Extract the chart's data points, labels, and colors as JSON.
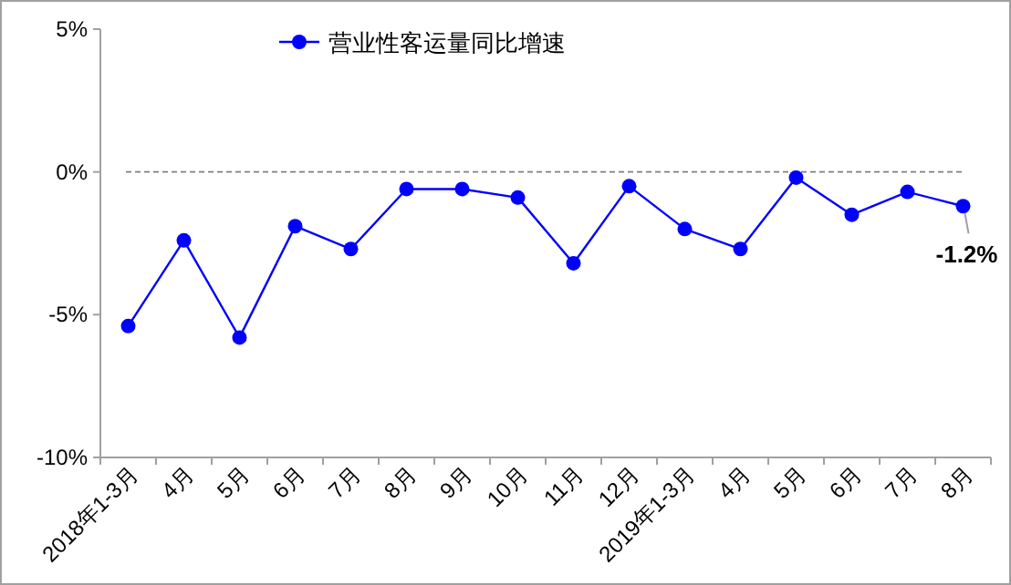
{
  "chart_data": {
    "type": "line",
    "categories": [
      "2018年1-3月",
      "4月",
      "5月",
      "6月",
      "7月",
      "8月",
      "9月",
      "10月",
      "11月",
      "12月",
      "2019年1-3月",
      "4月",
      "5月",
      "6月",
      "7月",
      "8月"
    ],
    "series": [
      {
        "name": "营业性客运量同比增速",
        "color": "#0000ff",
        "values": [
          -5.4,
          -2.4,
          -5.8,
          -1.9,
          -2.7,
          -0.6,
          -0.6,
          -0.9,
          -3.2,
          -0.5,
          -2.0,
          -2.7,
          -0.2,
          -1.5,
          -0.7,
          -1.2
        ],
        "value_labels": [
          null,
          null,
          null,
          null,
          null,
          null,
          null,
          null,
          null,
          null,
          null,
          null,
          null,
          null,
          null,
          "-1.2%"
        ]
      }
    ],
    "ylim": [
      -10,
      5
    ],
    "yticks": [
      {
        "value": -10,
        "label": "-10%"
      },
      {
        "value": -5,
        "label": "-5%"
      },
      {
        "value": 0,
        "label": "0%"
      },
      {
        "value": 5,
        "label": "5%"
      }
    ],
    "ref_lines": [
      {
        "axis": "y",
        "value": 0,
        "color": "#808080",
        "line_style": "dashed"
      }
    ],
    "legend": "top",
    "marker": "circle",
    "line_style": "solid",
    "grid": false
  }
}
